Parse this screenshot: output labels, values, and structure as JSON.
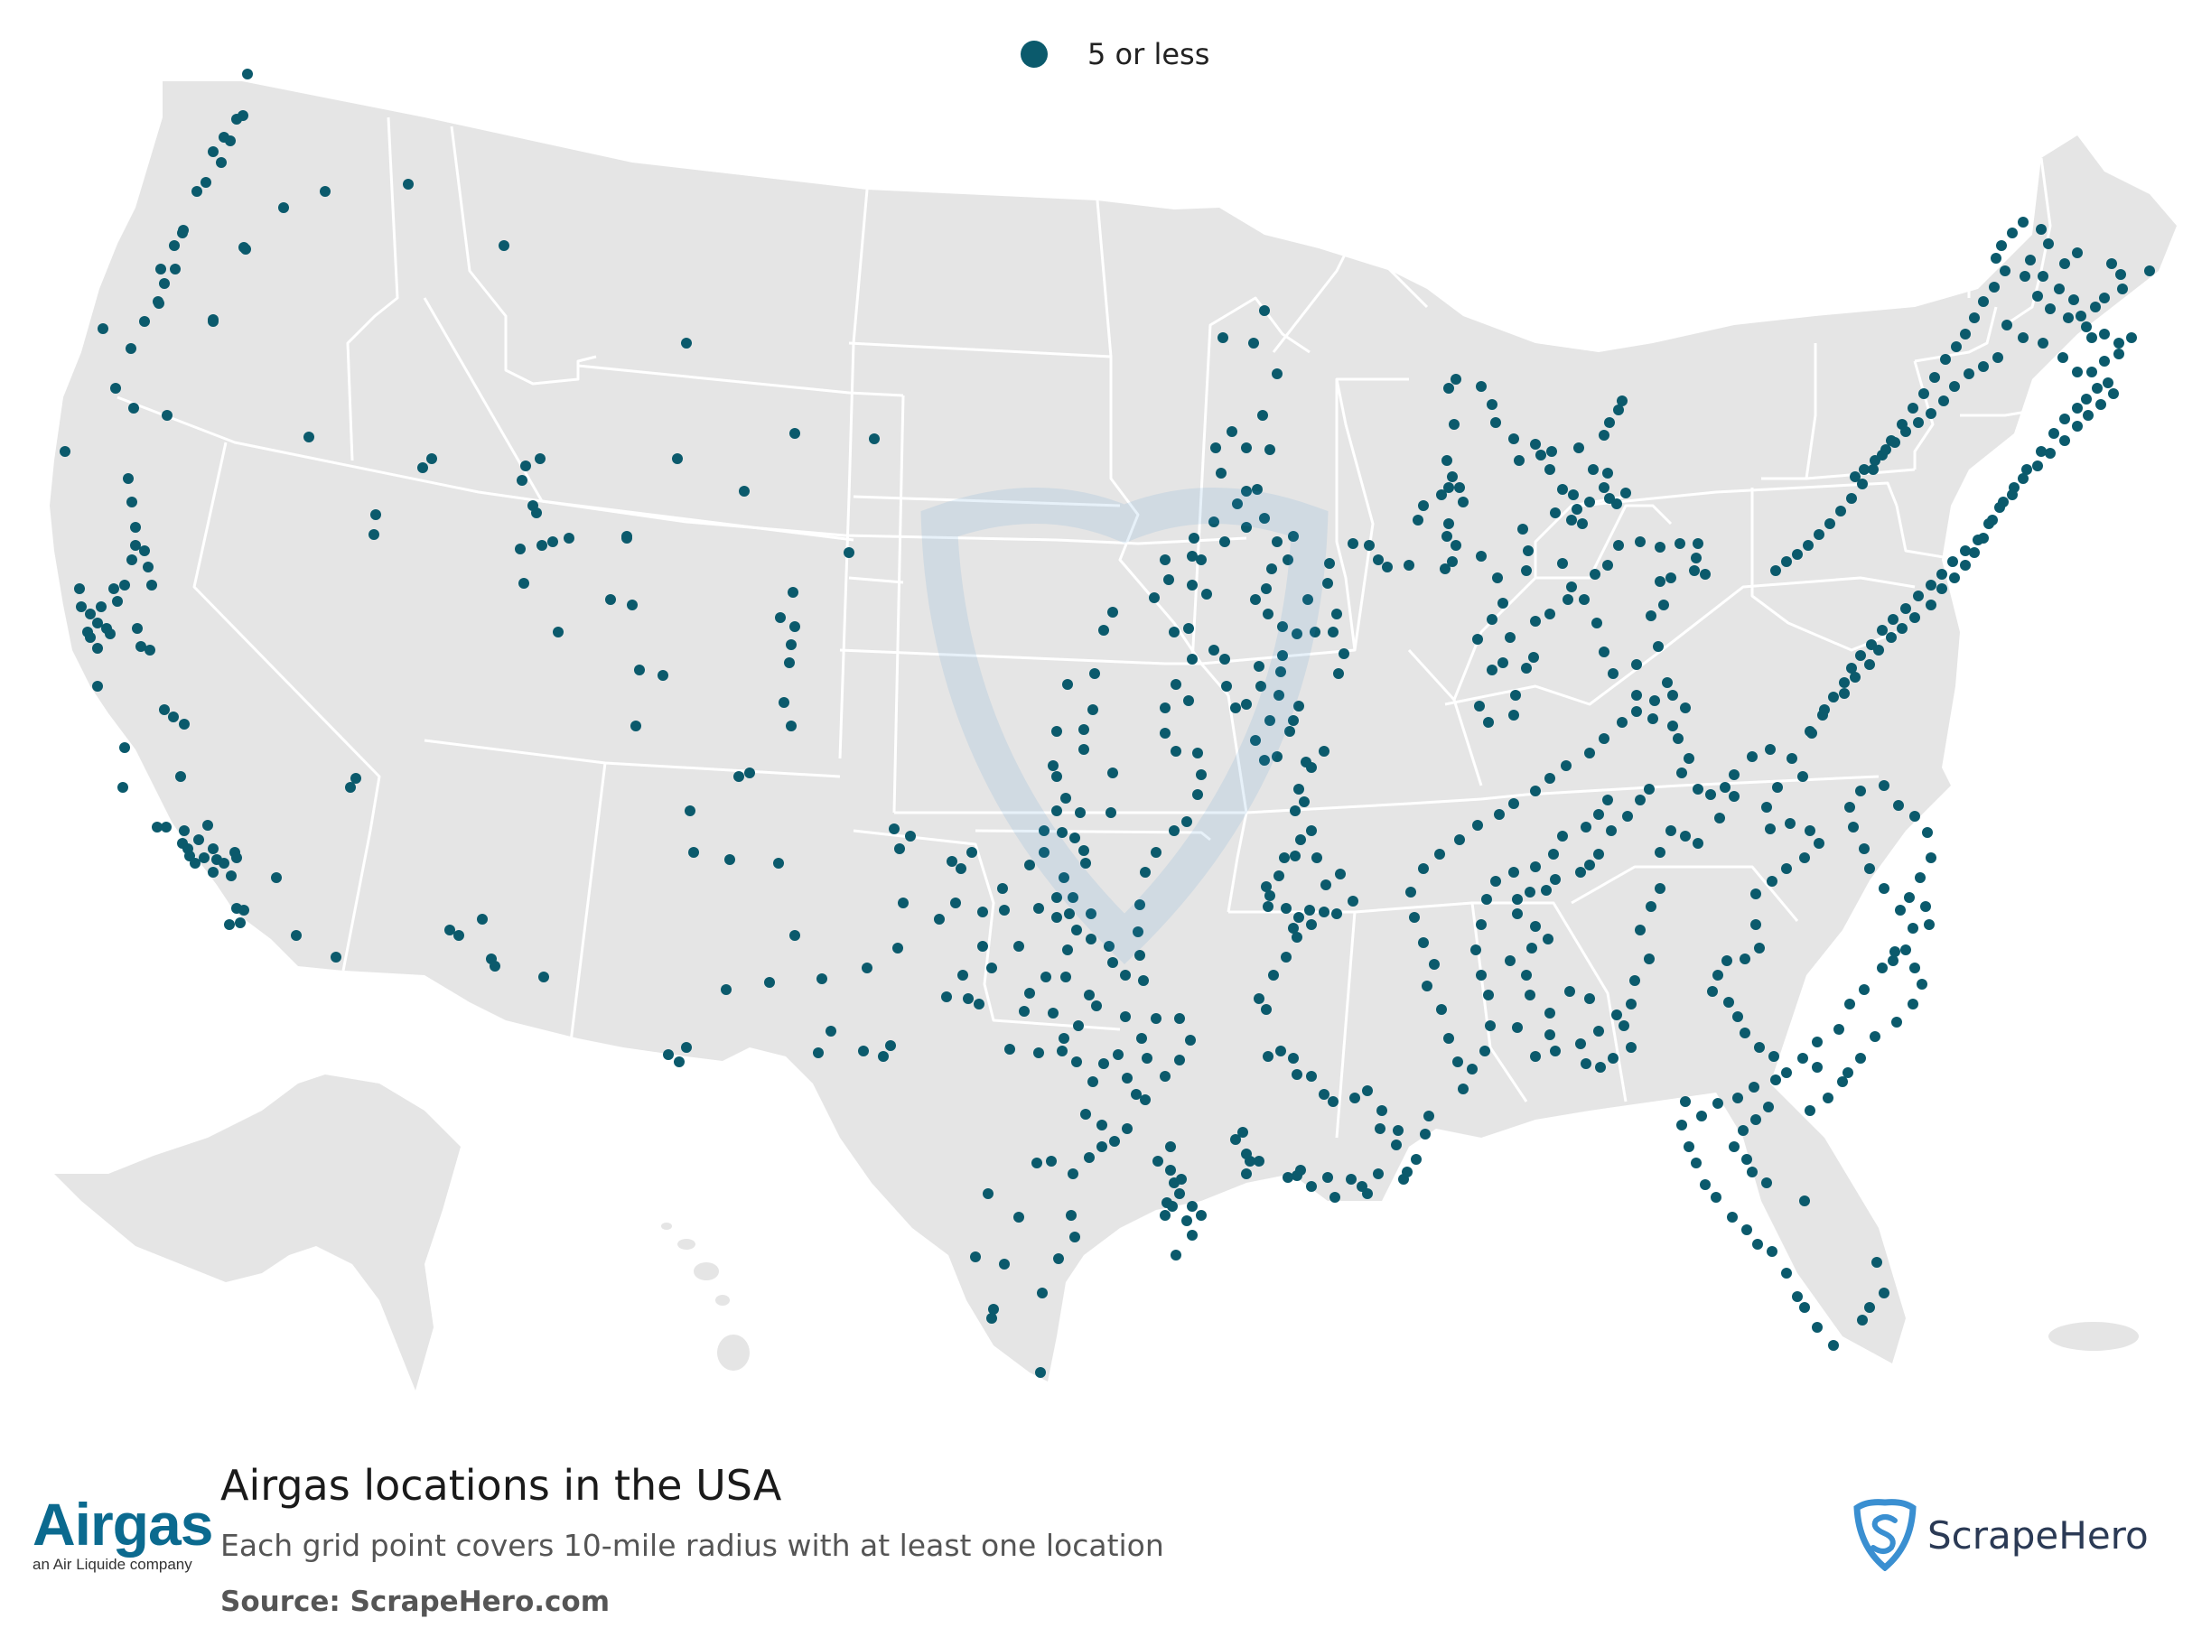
{
  "legend": {
    "label": "5 or less"
  },
  "title": "Airgas locations in the USA",
  "subtitle": "Each grid point covers 10-mile radius with at least one location",
  "source": "Source: ScrapeHero.com",
  "logos": {
    "left": {
      "wordmark": "Airgas",
      "tagline": "an Air Liquide company"
    },
    "right": {
      "wordmark": "ScrapeHero"
    }
  },
  "colors": {
    "dot": "#0b5a6c",
    "land": "#e5e5e5",
    "border": "#ffffff",
    "airgas_blue": "#0b6a8f",
    "scrapehero_blue": "#3a8fd1"
  }
}
